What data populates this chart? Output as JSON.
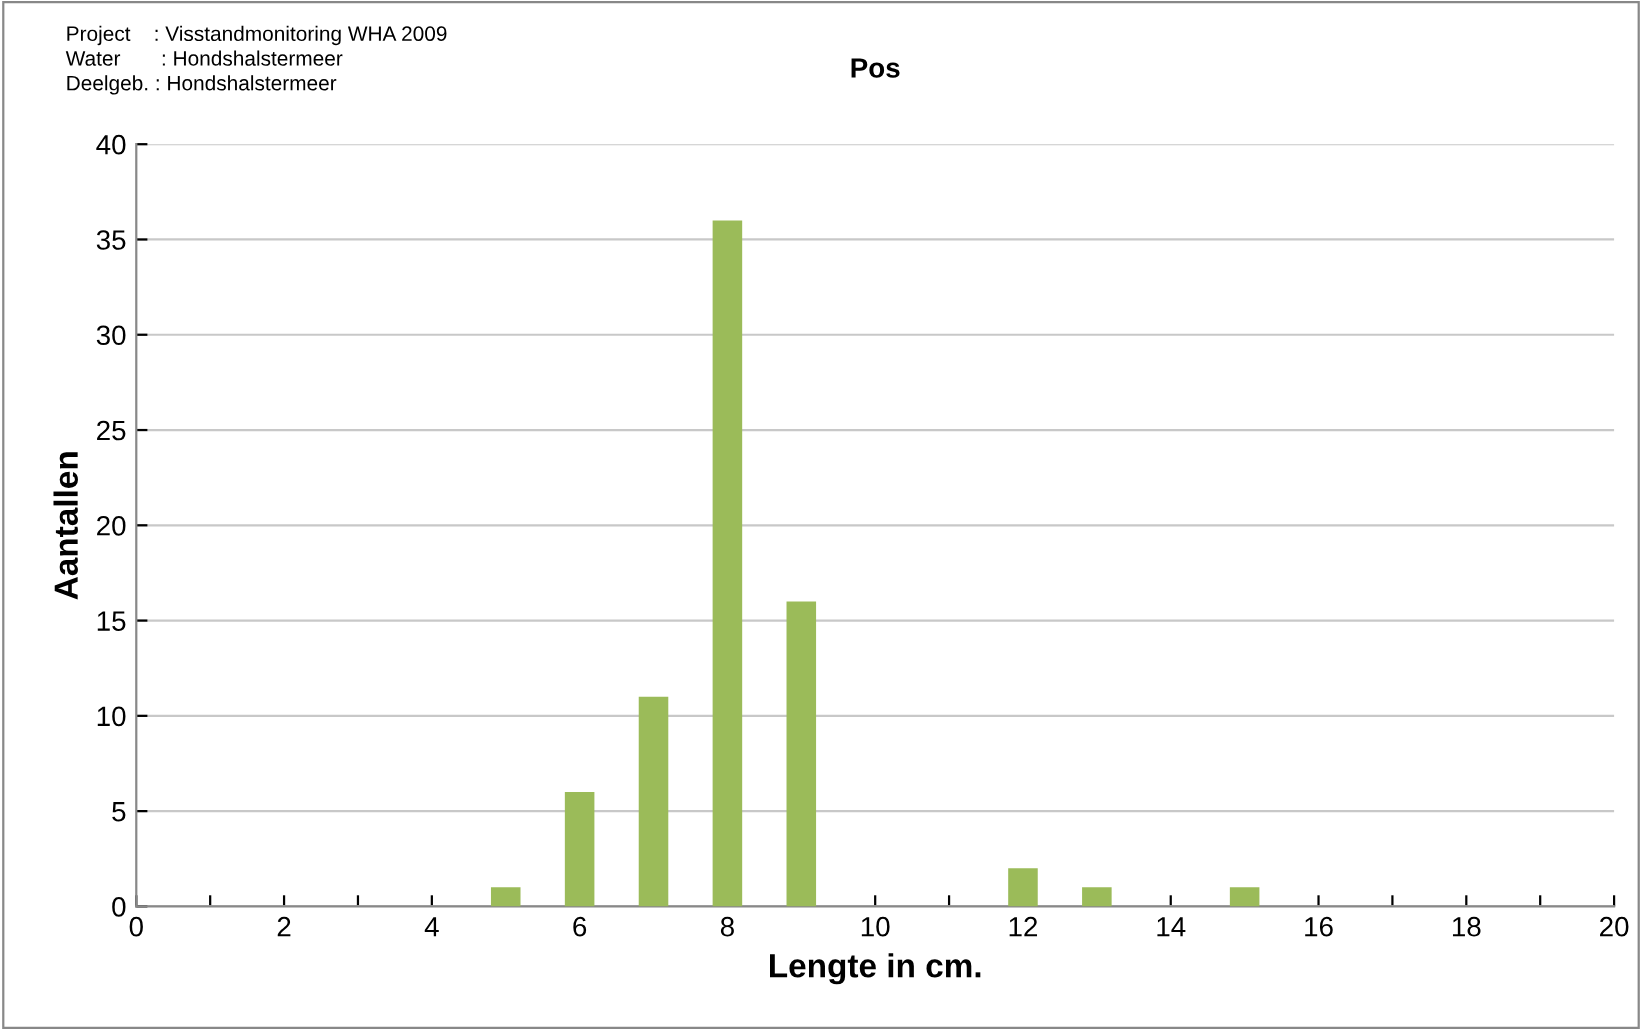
{
  "chart_data": {
    "type": "bar",
    "title": "Pos",
    "xlabel": "Lengte in cm.",
    "ylabel": "Aantallen",
    "annotations": [
      "Project    : Visstandmonitoring WHA 2009",
      "Water       : Hondshalstermeer",
      "Deelgeb. : Hondshalstermeer"
    ],
    "x": [
      5,
      6,
      7,
      8,
      9,
      12,
      13,
      15
    ],
    "values": [
      1,
      6,
      11,
      36,
      16,
      2,
      1,
      1
    ],
    "color": "#9bbb59",
    "xlim": [
      0,
      20
    ],
    "xticks": [
      0,
      {
        "value": 1,
        "label": null
      },
      2,
      {
        "value": 3,
        "label": null
      },
      4,
      {
        "value": 5,
        "label": null
      },
      6,
      {
        "value": 7,
        "label": null
      },
      8,
      {
        "value": 9,
        "label": null
      },
      10,
      {
        "value": 11,
        "label": null
      },
      12,
      {
        "value": 13,
        "label": null
      },
      14,
      {
        "value": 15,
        "label": null
      },
      16,
      {
        "value": 17,
        "label": null
      },
      18,
      {
        "value": 19,
        "label": null
      },
      20
    ],
    "ylim": [
      0,
      40
    ],
    "yticks": [
      0,
      5,
      10,
      15,
      20,
      25,
      30,
      35,
      40
    ],
    "grid": "y",
    "legend": false
  }
}
